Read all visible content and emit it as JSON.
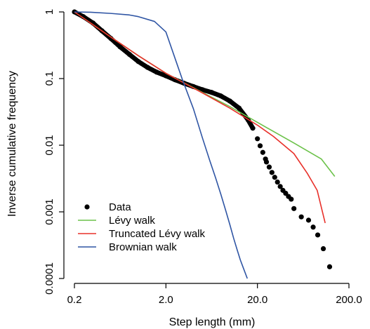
{
  "chart_data": {
    "type": "line",
    "title": "",
    "xlabel": "Step length (mm)",
    "ylabel": "Inverse cumulative frequency",
    "x_scale": "log",
    "y_scale": "log",
    "xlim": [
      0.2,
      200.0
    ],
    "ylim": [
      0.0001,
      1
    ],
    "x_ticks": [
      {
        "value": 0.2,
        "label": "0.2"
      },
      {
        "value": 2.0,
        "label": "2.0"
      },
      {
        "value": 20.0,
        "label": "20.0"
      },
      {
        "value": 200.0,
        "label": "200.0"
      }
    ],
    "y_ticks": [
      {
        "value": 1,
        "label": "1"
      },
      {
        "value": 0.1,
        "label": "0.1"
      },
      {
        "value": 0.01,
        "label": "0.01"
      },
      {
        "value": 0.001,
        "label": "0.001"
      },
      {
        "value": 0.0001,
        "label": "0.0001"
      }
    ],
    "grid": false,
    "legend_position": "bottom-left",
    "series": [
      {
        "name": "Data",
        "kind": "points",
        "color": "#000000",
        "x": [
          0.2,
          0.25,
          0.32,
          0.4,
          0.5,
          0.63,
          0.8,
          1.0,
          1.26,
          1.58,
          2.0,
          2.51,
          3.16,
          3.98,
          5.01,
          6.31,
          7.94,
          10.0,
          12.6,
          15.8,
          17.8,
          20.0,
          21.4,
          22.9,
          24.5,
          25.1,
          26.9,
          28.8,
          30.9,
          33.1,
          35.5,
          38.0,
          40.7,
          43.7,
          46.8,
          50.1,
          60.3,
          72.4,
          81.3,
          91.2,
          105,
          123
        ],
        "y": [
          1.0,
          0.85,
          0.68,
          0.52,
          0.4,
          0.3,
          0.23,
          0.18,
          0.147,
          0.125,
          0.11,
          0.096,
          0.085,
          0.076,
          0.068,
          0.062,
          0.055,
          0.046,
          0.036,
          0.024,
          0.018,
          0.0125,
          0.0098,
          0.0078,
          0.0062,
          0.0056,
          0.0047,
          0.0039,
          0.0033,
          0.0028,
          0.0024,
          0.0021,
          0.0019,
          0.0017,
          0.00155,
          0.00112,
          0.00084,
          0.00075,
          0.00059,
          0.00045,
          0.00028,
          0.00015
        ]
      },
      {
        "name": "Lévy walk",
        "kind": "line",
        "color": "#6cc24a",
        "x": [
          0.2,
          0.5,
          1.0,
          2.0,
          5.0,
          10.0,
          20.0,
          50.0,
          100.0,
          140.0
        ],
        "y": [
          1.0,
          0.42,
          0.22,
          0.12,
          0.062,
          0.038,
          0.022,
          0.0108,
          0.0062,
          0.0034
        ]
      },
      {
        "name": "Truncated Lévy walk",
        "kind": "line",
        "color": "#e8302a",
        "x": [
          0.2,
          0.5,
          1.0,
          2.0,
          5.0,
          10.0,
          20.0,
          30.0,
          50.0,
          70.0,
          90.0,
          110.0
        ],
        "y": [
          1.0,
          0.42,
          0.22,
          0.12,
          0.061,
          0.036,
          0.02,
          0.0135,
          0.0075,
          0.0038,
          0.0021,
          0.00068
        ]
      },
      {
        "name": "Brownian walk",
        "kind": "line",
        "color": "#2f55a4",
        "x": [
          0.2,
          0.3,
          0.5,
          0.8,
          1.0,
          1.5,
          2.0,
          3.0,
          4.0,
          5.0,
          6.0,
          7.0,
          8.0,
          9.0,
          10.0,
          11.0,
          12.0,
          13.0,
          14.0,
          15.5
        ],
        "y": [
          1.0,
          0.99,
          0.95,
          0.9,
          0.85,
          0.72,
          0.5,
          0.1,
          0.035,
          0.013,
          0.006,
          0.0032,
          0.0018,
          0.00105,
          0.00064,
          0.0004,
          0.00027,
          0.00019,
          0.000145,
          0.0001
        ]
      }
    ]
  }
}
